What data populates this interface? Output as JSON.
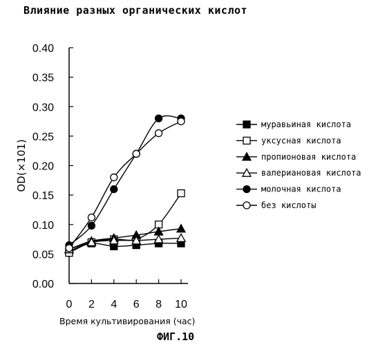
{
  "chart_data": {
    "type": "line",
    "title": "Влияние разных органических кислот",
    "xlabel": "Время культивирования (час)",
    "ylabel": "OD(×101)",
    "xlim": [
      0,
      10
    ],
    "ylim": [
      0,
      0.4
    ],
    "x_ticks": [
      0,
      2,
      4,
      6,
      8,
      10
    ],
    "y_ticks": [
      "0.00",
      "0.05",
      "0.10",
      "0.15",
      "0.20",
      "0.25",
      "0.30",
      "0.35",
      "0.40"
    ],
    "grid": false,
    "legend_position": "right",
    "series": [
      {
        "name": "муравьиная кислота",
        "marker": "square-filled",
        "x": [
          0,
          2,
          4,
          6,
          8,
          10
        ],
        "values": [
          0.055,
          0.068,
          0.063,
          0.065,
          0.068,
          0.068
        ]
      },
      {
        "name": "уксусная кислота",
        "marker": "square-open",
        "x": [
          0,
          2,
          4,
          6,
          8,
          10
        ],
        "values": [
          0.052,
          0.07,
          0.075,
          0.075,
          0.1,
          0.153
        ]
      },
      {
        "name": "пропионовая кислота",
        "marker": "triangle-filled",
        "x": [
          0,
          2,
          4,
          6,
          8,
          10
        ],
        "values": [
          0.058,
          0.072,
          0.077,
          0.082,
          0.088,
          0.093
        ]
      },
      {
        "name": "валериановая кислота",
        "marker": "triangle-open",
        "x": [
          0,
          2,
          4,
          6,
          8,
          10
        ],
        "values": [
          0.058,
          0.07,
          0.073,
          0.073,
          0.075,
          0.077
        ]
      },
      {
        "name": "молочная кислота",
        "marker": "circle-filled",
        "x": [
          0,
          2,
          4,
          6,
          8,
          10
        ],
        "values": [
          0.065,
          0.098,
          0.16,
          0.22,
          0.28,
          0.28
        ]
      },
      {
        "name": "без кислоты",
        "marker": "circle-open",
        "x": [
          0,
          2,
          4,
          6,
          8,
          10
        ],
        "values": [
          0.06,
          0.112,
          0.18,
          0.22,
          0.255,
          0.275
        ]
      }
    ]
  },
  "figure_label": "ФИГ.10"
}
